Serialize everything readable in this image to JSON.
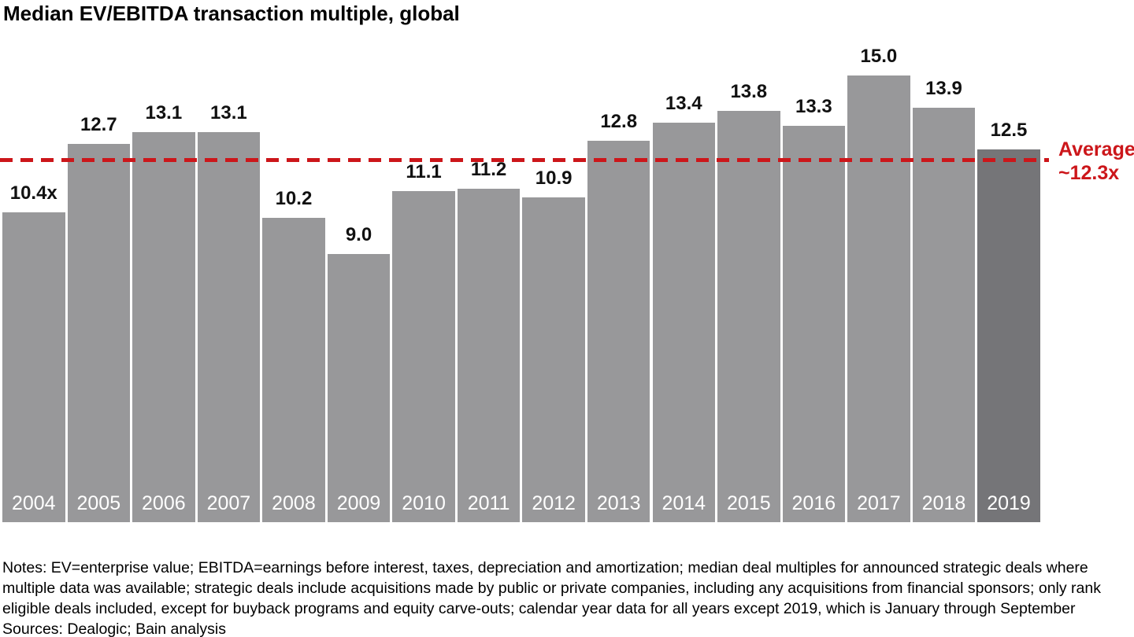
{
  "chart_data": {
    "type": "bar",
    "title": "Median EV/EBITDA transaction multiple, global",
    "categories": [
      "2004",
      "2005",
      "2006",
      "2007",
      "2008",
      "2009",
      "2010",
      "2011",
      "2012",
      "2013",
      "2014",
      "2015",
      "2016",
      "2017",
      "2018",
      "2019"
    ],
    "values": [
      10.4,
      12.7,
      13.1,
      13.1,
      10.2,
      9.0,
      11.1,
      11.2,
      10.9,
      12.8,
      13.4,
      13.8,
      13.3,
      15.0,
      13.9,
      12.5
    ],
    "value_labels": [
      "10.4x",
      "12.7",
      "13.1",
      "13.1",
      "10.2",
      "9.0",
      "11.1",
      "11.2",
      "10.9",
      "12.8",
      "13.4",
      "13.8",
      "13.3",
      "15.0",
      "13.9",
      "12.5"
    ],
    "xlabel": "",
    "ylabel": "",
    "ylim": [
      0,
      17.5
    ],
    "grid": false,
    "legend": false,
    "bar_color": "#98989A",
    "highlight_bar_color": "#757578",
    "highlight_index": 15,
    "value_label_color": "#111111",
    "year_label_color": "#FFFFFF",
    "average_line": {
      "value": 12.3,
      "label_line1": "Average",
      "label_line2": "~12.3x",
      "color": "#CC161A",
      "style": "dashed"
    }
  },
  "notes": {
    "lines": [
      "Notes: EV=enterprise value; EBITDA=earnings before interest, taxes, depreciation and amortization; median deal multiples for announced strategic deals where",
      "multiple data was available; strategic deals include acquisitions made by public or private companies, including any acquisitions from financial sponsors; only rank",
      "eligible deals included, except for buyback programs and equity carve-outs; calendar year data for all years except 2019, which is January through September",
      "Sources: Dealogic; Bain analysis"
    ]
  }
}
